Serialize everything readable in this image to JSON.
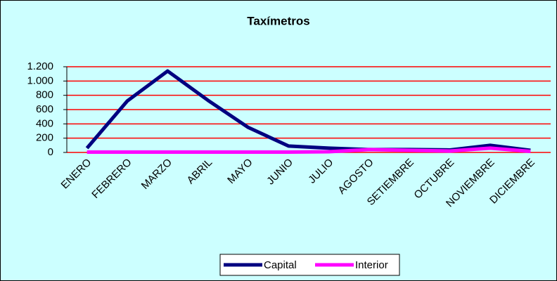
{
  "chart_data": {
    "type": "line",
    "title": "Taxímetros",
    "categories": [
      "ENERO",
      "FEBRERO",
      "MARZO",
      "ABRIL",
      "MAYO",
      "JUNIO",
      "JULIO",
      "AGOSTO",
      "SETIEMBRE",
      "OCTUBRE",
      "NOVIEMBRE",
      "DICIEMBRE"
    ],
    "series": [
      {
        "name": "Capital",
        "color": "#000080",
        "values": [
          60,
          720,
          1140,
          730,
          350,
          90,
          60,
          40,
          40,
          35,
          100,
          30
        ]
      },
      {
        "name": "Interior",
        "color": "#ff00ff",
        "values": [
          5,
          5,
          5,
          5,
          5,
          5,
          10,
          40,
          30,
          20,
          60,
          15
        ]
      }
    ],
    "ylim": [
      0,
      1200
    ],
    "yticks": [
      0,
      200,
      400,
      600,
      800,
      {
        "value": 1000,
        "label": "1.000"
      },
      {
        "value": 1200,
        "label": "1.200"
      }
    ],
    "grid": true,
    "grid_color": "#ff0000",
    "background": "#ccffff",
    "legend": "bottom"
  }
}
